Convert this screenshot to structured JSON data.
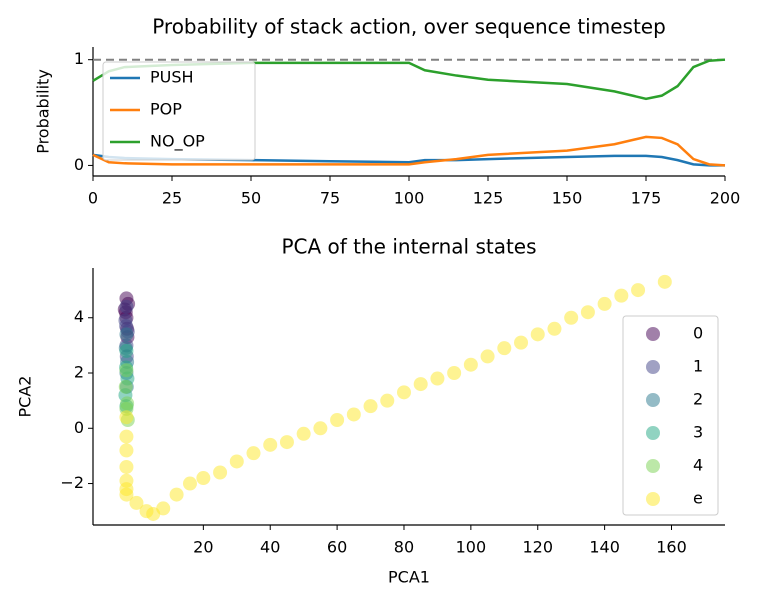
{
  "chart_data": [
    {
      "type": "line",
      "title": "Probability of stack action, over sequence timestep",
      "y_label": "Probability",
      "x": [
        0,
        5,
        10,
        25,
        50,
        75,
        100,
        105,
        115,
        125,
        150,
        165,
        175,
        180,
        185,
        190,
        195,
        200
      ],
      "series": [
        {
          "name": "PUSH",
          "color": "#1f77b4",
          "values": [
            0.1,
            0.08,
            0.07,
            0.06,
            0.05,
            0.04,
            0.03,
            0.05,
            0.05,
            0.06,
            0.08,
            0.09,
            0.09,
            0.08,
            0.05,
            0.01,
            0,
            0
          ]
        },
        {
          "name": "POP",
          "color": "#ff7f0e",
          "values": [
            0.1,
            0.03,
            0.02,
            0.01,
            0.01,
            0.01,
            0.01,
            0.03,
            0.06,
            0.1,
            0.14,
            0.2,
            0.27,
            0.26,
            0.2,
            0.06,
            0.01,
            0
          ]
        },
        {
          "name": "NO_OP",
          "color": "#2ca02c",
          "values": [
            0.8,
            0.89,
            0.93,
            0.95,
            0.97,
            0.97,
            0.97,
            0.9,
            0.85,
            0.81,
            0.77,
            0.7,
            0.63,
            0.66,
            0.75,
            0.93,
            0.99,
            1
          ]
        }
      ],
      "hline": 1,
      "xlim": [
        0,
        200
      ],
      "xticks": [
        0,
        25,
        50,
        75,
        100,
        125,
        150,
        175,
        200
      ],
      "ylim": [
        -0.1,
        1.12
      ],
      "yticks": [
        0,
        1
      ],
      "legend": "upper left"
    },
    {
      "type": "scatter",
      "title": "PCA of the internal states",
      "x_label": "PCA1",
      "y_label": "PCA2",
      "series": [
        {
          "name": "0",
          "color": "#440154",
          "x": [
            -3,
            -2.5,
            -3.5,
            -3,
            -2.8,
            -3.2,
            -2.7
          ],
          "values": [
            4.7,
            4.5,
            4.3,
            4.0,
            3.6,
            4.2,
            3.3
          ]
        },
        {
          "name": "1",
          "color": "#414487",
          "x": [
            -3,
            -3.3,
            -2.6,
            -3,
            -2.9,
            -3.1
          ],
          "values": [
            4.4,
            3.9,
            3.5,
            3.0,
            2.6,
            3.7
          ]
        },
        {
          "name": "2",
          "color": "#2a788e",
          "x": [
            -3,
            -3.2,
            -2.8,
            -3,
            -2.9
          ],
          "values": [
            3.4,
            2.9,
            2.4,
            2.0,
            1.5
          ]
        },
        {
          "name": "3",
          "color": "#22a884",
          "x": [
            -3,
            -3.1,
            -2.7,
            -3.3,
            -3
          ],
          "values": [
            2.8,
            2.2,
            1.8,
            1.2,
            0.8
          ]
        },
        {
          "name": "4",
          "color": "#7ad151",
          "x": [
            -3,
            -3.2,
            -2.8,
            -3,
            -2.6
          ],
          "values": [
            2.1,
            1.5,
            0.9,
            0.7,
            0.3
          ]
        },
        {
          "name": "e",
          "color": "#fde725",
          "x": [
            -3,
            -3,
            -3,
            -3,
            -3,
            -3,
            -3,
            0,
            3,
            5,
            8,
            12,
            16,
            20,
            25,
            30,
            35,
            40,
            45,
            50,
            55,
            60,
            65,
            70,
            75,
            80,
            85,
            90,
            95,
            100,
            105,
            110,
            115,
            120,
            125,
            130,
            135,
            140,
            145,
            150,
            158
          ],
          "values": [
            0.4,
            -0.3,
            -0.8,
            -1.4,
            -1.9,
            -2.2,
            -2.4,
            -2.7,
            -3,
            -3.1,
            -2.9,
            -2.4,
            -2.0,
            -1.8,
            -1.6,
            -1.2,
            -0.9,
            -0.6,
            -0.5,
            -0.2,
            0.0,
            0.3,
            0.5,
            0.8,
            1.0,
            1.3,
            1.6,
            1.8,
            2.0,
            2.3,
            2.6,
            2.9,
            3.1,
            3.4,
            3.6,
            4.0,
            4.2,
            4.5,
            4.8,
            5.0,
            5.3
          ]
        }
      ],
      "xlim": [
        -13,
        176
      ],
      "xticks": [
        20,
        40,
        60,
        80,
        100,
        120,
        140,
        160
      ],
      "ylim": [
        -3.5,
        5.8
      ],
      "yticks": [
        {
          "value": -2,
          "label": "−2"
        },
        0,
        2,
        4
      ],
      "legend": "center right"
    }
  ]
}
